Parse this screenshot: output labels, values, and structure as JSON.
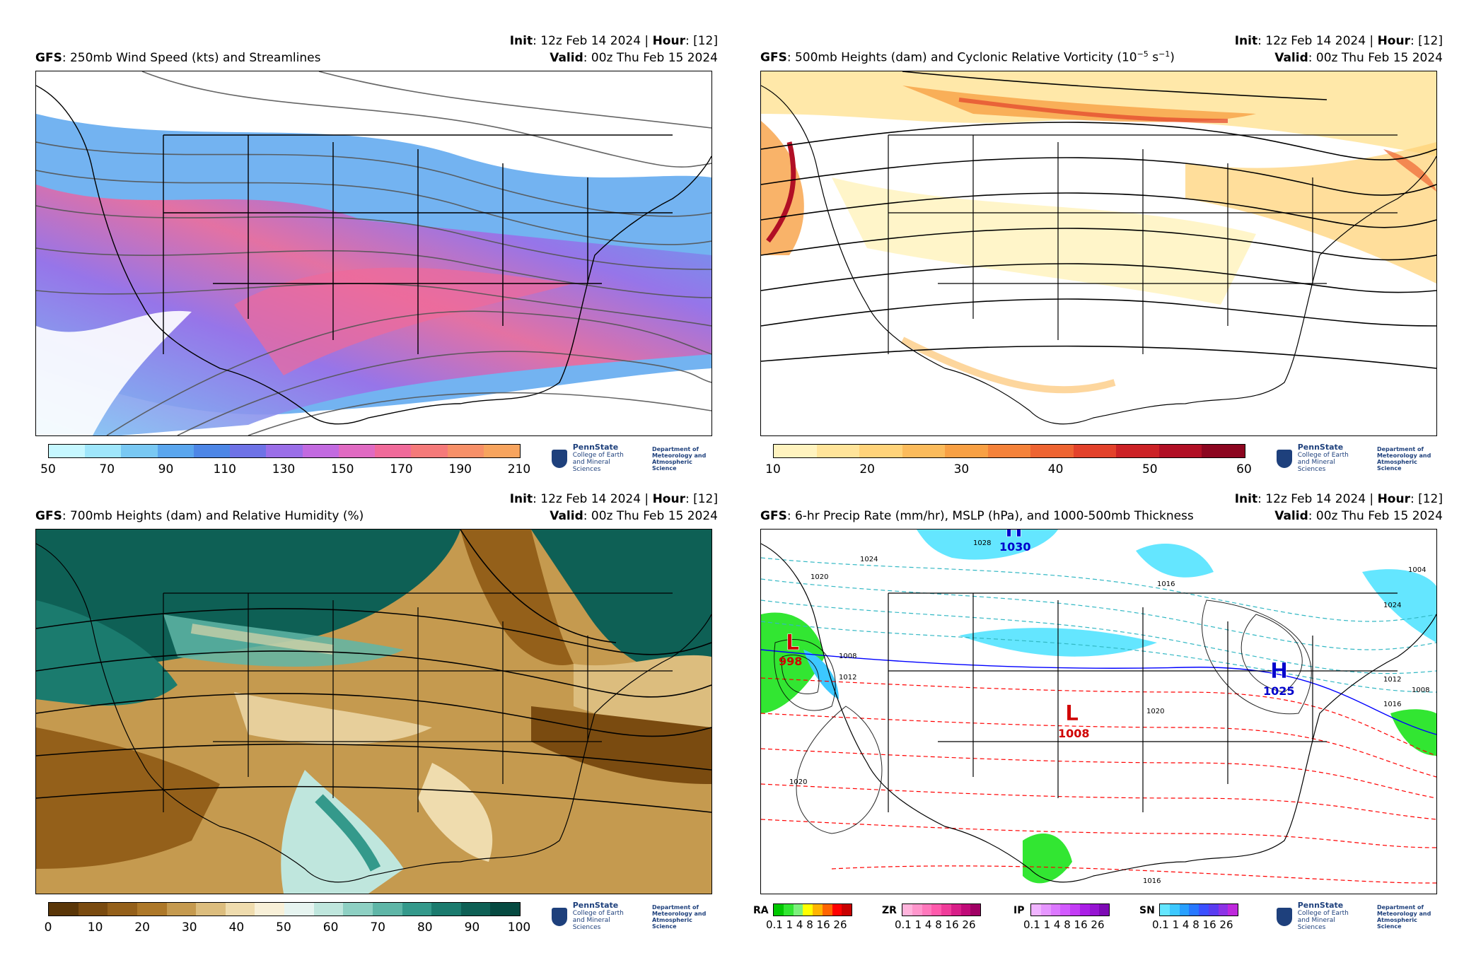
{
  "panels": [
    {
      "model": "GFS",
      "title": ": 250mb Wind Speed (kts) and Streamlines",
      "init_label": "Init",
      "init_value": ": 12z Feb 14 2024 | ",
      "hour_label": "Hour",
      "hour_value": ": [12]",
      "valid_label": "Valid",
      "valid_value": ": 00z Thu Feb 15 2024",
      "colorbar_ticks": [
        "50",
        "70",
        "90",
        "110",
        "130",
        "150",
        "170",
        "190",
        "210"
      ],
      "colors": [
        "#c6f7ff",
        "#9fe6fb",
        "#79c8f3",
        "#5aa6ee",
        "#4d86e6",
        "#6e72e6",
        "#9a6ee8",
        "#c26ae0",
        "#e06ac2",
        "#f06a9a",
        "#f57a7a",
        "#f79068",
        "#f7a45e"
      ]
    },
    {
      "model": "GFS",
      "title": ": 500mb Heights (dam) and Cyclonic Relative Vorticity (10",
      "title_sup1": "−5",
      "title_mid": " s",
      "title_sup2": "−1",
      "title_end": ")",
      "init_label": "Init",
      "init_value": ": 12z Feb 14 2024 | ",
      "hour_label": "Hour",
      "hour_value": ": [12]",
      "valid_label": "Valid",
      "valid_value": ": 00z Thu Feb 15 2024",
      "colorbar_ticks": [
        "10",
        "20",
        "30",
        "40",
        "50",
        "60"
      ],
      "colors": [
        "#fff3bf",
        "#ffe49a",
        "#ffd37a",
        "#fbbb5c",
        "#f8a044",
        "#f4823a",
        "#ee6432",
        "#e3422b",
        "#cc2226",
        "#b10f25",
        "#8c0620"
      ]
    },
    {
      "model": "GFS",
      "title": ": 700mb Heights (dam) and Relative Humidity (%)",
      "init_label": "Init",
      "init_value": ": 12z Feb 14 2024 | ",
      "hour_label": "Hour",
      "hour_value": ": [12]",
      "valid_label": "Valid",
      "valid_value": ": 00z Thu Feb 15 2024",
      "colorbar_ticks": [
        "0",
        "10",
        "20",
        "30",
        "40",
        "50",
        "60",
        "70",
        "80",
        "90",
        "100"
      ],
      "colors": [
        "#5a3608",
        "#7a4b10",
        "#94601a",
        "#ad7829",
        "#c59a4f",
        "#dcbd7e",
        "#efdcae",
        "#f8f0d8",
        "#e6f4f0",
        "#bfe6dd",
        "#8ed0c3",
        "#5fb6a7",
        "#34998b",
        "#1b7b6e",
        "#0e6055",
        "#064a41"
      ]
    },
    {
      "model": "GFS",
      "title": ": 6-hr Precip Rate (mm/hr), MSLP (hPa), and 1000-500mb Thickness",
      "init_label": "Init",
      "init_value": ": 12z Feb 14 2024 | ",
      "hour_label": "Hour",
      "hour_value": ": [12]",
      "valid_label": "Valid",
      "valid_value": ": 00z Thu Feb 15 2024",
      "ptypes": [
        {
          "label": "RA",
          "ticks": "0.1 1   4   8  16 26",
          "colors": [
            "#00c800",
            "#32e632",
            "#7cf07c",
            "#ffff00",
            "#ffb400",
            "#ff6400",
            "#ff0000",
            "#c80000"
          ]
        },
        {
          "label": "ZR",
          "ticks": "0.1 1   4   8  16 26",
          "colors": [
            "#ffb4dc",
            "#ff96cc",
            "#ff78bc",
            "#ff5aac",
            "#f03c9a",
            "#d81e88",
            "#c00a78",
            "#a00064"
          ]
        },
        {
          "label": "IP",
          "ticks": "0.1 1   4   8  16 26",
          "colors": [
            "#f0b4ff",
            "#e696ff",
            "#dc78ff",
            "#d25aff",
            "#c33cf5",
            "#aa1ee6",
            "#9614d2",
            "#7d0ab4"
          ]
        },
        {
          "label": "SN",
          "ticks": "0.1 1   4   8  16 26",
          "colors": [
            "#64e6ff",
            "#3cc8ff",
            "#28a0ff",
            "#2878ff",
            "#3c50ff",
            "#5a3cf0",
            "#8c32e6",
            "#be28dc"
          ]
        }
      ],
      "centers": [
        {
          "type": "L",
          "value": "998"
        },
        {
          "type": "L",
          "value": "1008"
        },
        {
          "type": "H",
          "value": "1030"
        },
        {
          "type": "H",
          "value": "1025"
        }
      ],
      "isobar_labels": [
        "1028",
        "1024",
        "1020",
        "1016",
        "1004",
        "1008",
        "1012",
        "1020",
        "1016",
        "1012",
        "1008",
        "1016",
        "1020",
        "1024"
      ]
    }
  ],
  "logo": {
    "name": "PennState",
    "line1": "College of Earth",
    "line2": "and Mineral Sciences",
    "dept1": "Department of",
    "dept2": "Meteorology and",
    "dept3": "Atmospheric Science"
  }
}
